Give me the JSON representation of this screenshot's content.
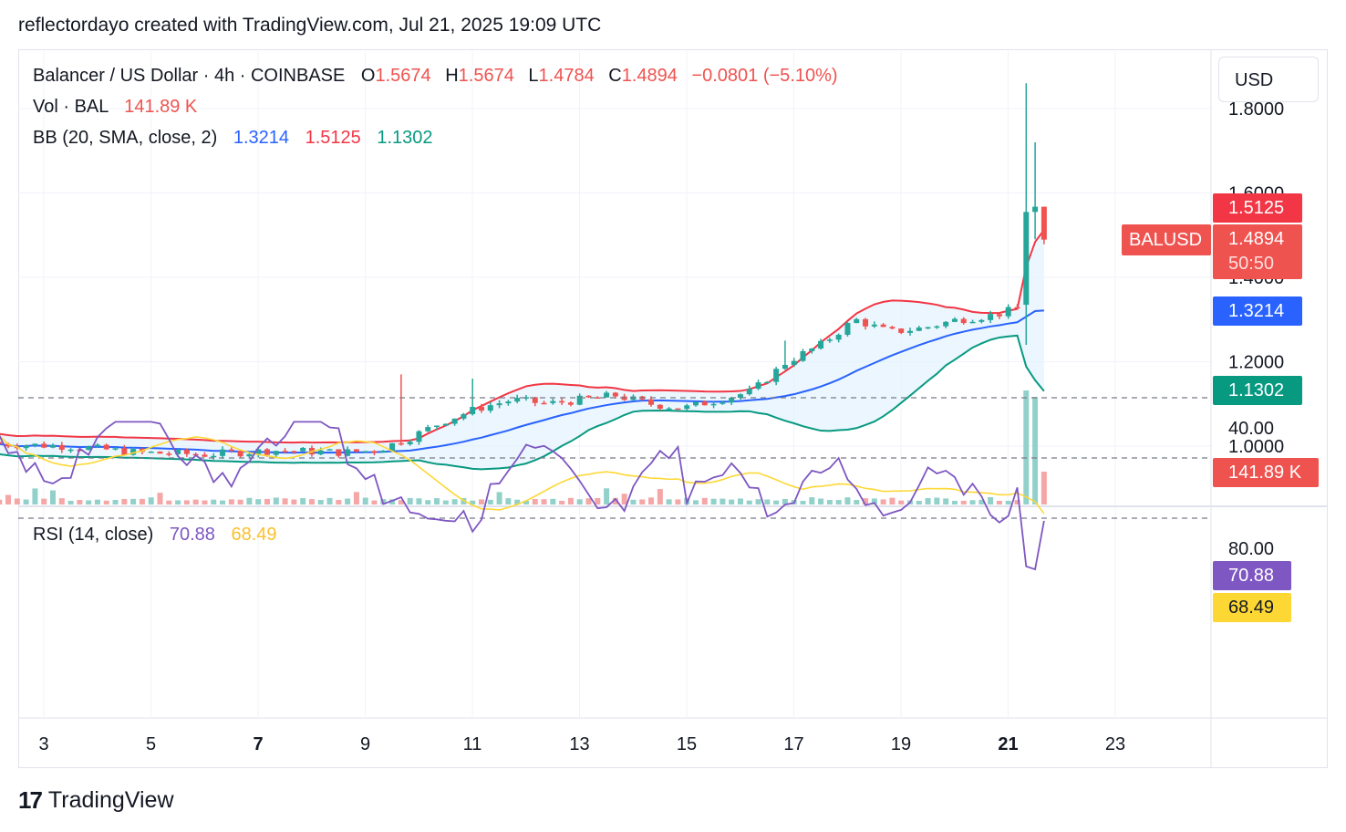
{
  "header": {
    "text": "reflectordayo created with TradingView.com, Jul 21, 2025 19:09 UTC"
  },
  "legend": {
    "symbol": "Balancer / US Dollar · 4h · COINBASE",
    "o_label": "O",
    "o_value": "1.5674",
    "h_label": "H",
    "h_value": "1.5674",
    "l_label": "L",
    "l_value": "1.4784",
    "c_label": "C",
    "c_value": "1.4894",
    "change": "−0.0801 (−5.10%)",
    "vol_label": "Vol · BAL",
    "vol_value": "141.89 K",
    "bb_label": "BB (20, SMA, close, 2)",
    "bb_basis": "1.3214",
    "bb_upper": "1.5125",
    "bb_lower": "1.1302",
    "rsi_label": "RSI (14, close)",
    "rsi_value": "70.88",
    "rsi_ma": "68.49"
  },
  "currency_button": "USD",
  "tags": {
    "symbol_tag": "BALUSD",
    "upper": "1.5125",
    "price": "1.4894",
    "countdown": "50:50",
    "basis": "1.3214",
    "lower": "1.1302",
    "volume": "141.89 K",
    "rsi": "70.88",
    "rsi_ma": "68.49"
  },
  "colors": {
    "up": "#26a69a",
    "down": "#ef5350",
    "upper_band": "#f23645",
    "basis": "#2962ff",
    "lower_band": "#089981",
    "rsi": "#7e57c2",
    "rsi_ma": "#fdd835",
    "band_fill": "#e3f2fd"
  },
  "footer": {
    "brand": "TradingView"
  },
  "chart_data": {
    "type": "candlestick",
    "interval": "4h",
    "price_axis": {
      "ticks": [
        "1.8000",
        "1.6000",
        "1.4000",
        "1.2000",
        "1.0000"
      ],
      "range": [
        0.86,
        1.84
      ]
    },
    "rsi_axis": {
      "ticks": [
        "80.00",
        "40.00"
      ],
      "range": [
        20,
        90
      ],
      "bands": [
        70,
        30
      ]
    },
    "x_axis": {
      "ticks": [
        "3",
        "5",
        "7",
        "9",
        "11",
        "13",
        "15",
        "17",
        "19",
        "21",
        "23"
      ],
      "bold": [
        "7",
        "21"
      ]
    },
    "candles_sample": [
      {
        "t": "Jul 2",
        "o": 1.01,
        "h": 1.02,
        "l": 1.0,
        "c": 1.0
      },
      {
        "t": "Jul 9",
        "o": 1.04,
        "h": 1.08,
        "l": 1.03,
        "c": 1.07
      },
      {
        "t": "Jul 11",
        "o": 1.12,
        "h": 1.16,
        "l": 1.1,
        "c": 1.12
      },
      {
        "t": "Jul 13",
        "o": 1.1,
        "h": 1.12,
        "l": 1.09,
        "c": 1.11
      },
      {
        "t": "Jul 15",
        "o": 1.09,
        "h": 1.1,
        "l": 1.08,
        "c": 1.09
      },
      {
        "t": "Jul 17",
        "o": 1.18,
        "h": 1.24,
        "l": 1.17,
        "c": 1.22
      },
      {
        "t": "Jul 19",
        "o": 1.28,
        "h": 1.3,
        "l": 1.26,
        "c": 1.29
      },
      {
        "t": "Jul 21",
        "o": 1.35,
        "h": 1.86,
        "l": 1.24,
        "c": 1.55
      },
      {
        "t": "Jul 21 last",
        "o": 1.5674,
        "h": 1.5674,
        "l": 1.4784,
        "c": 1.4894
      }
    ]
  }
}
